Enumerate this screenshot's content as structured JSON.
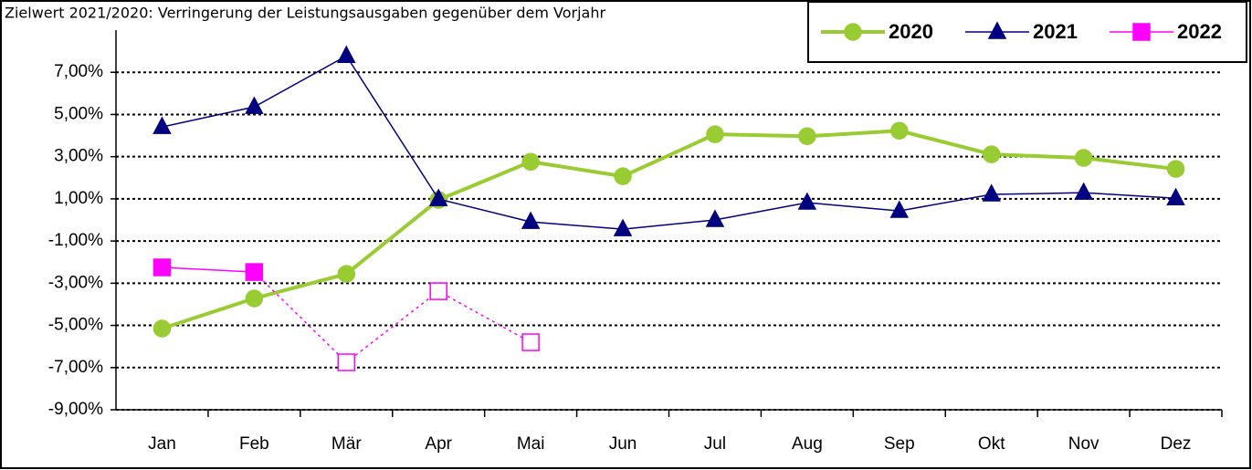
{
  "chart_data": {
    "type": "line",
    "title": "Zielwert 2021/2020: Verringerung der Leistungsausgaben gegenüber dem Vorjahr",
    "categories": [
      "Jan",
      "Feb",
      "Mär",
      "Apr",
      "Mai",
      "Jun",
      "Jul",
      "Aug",
      "Sep",
      "Okt",
      "Nov",
      "Dez"
    ],
    "series": [
      {
        "name": "2020",
        "color": "#99cc33",
        "marker": "circle",
        "line_width": 4,
        "values": [
          -5.15,
          -3.72,
          -2.56,
          0.95,
          2.76,
          2.07,
          4.06,
          3.97,
          4.23,
          3.11,
          2.94,
          2.42
        ]
      },
      {
        "name": "2021",
        "color": "#000080",
        "marker": "triangle",
        "line_width": 1.5,
        "values": [
          4.41,
          5.36,
          7.78,
          0.99,
          -0.09,
          -0.44,
          0.0,
          0.82,
          0.43,
          1.21,
          1.29,
          1.03
        ]
      },
      {
        "name": "2022",
        "color": "#ff00ff",
        "marker": "square",
        "line_width": 1.5,
        "values": [
          -2.25,
          -2.47,
          -6.75,
          -3.38,
          -5.8,
          null,
          null,
          null,
          null,
          null,
          null,
          null
        ],
        "styles": [
          "solid",
          "solid",
          "dotted",
          "dotted",
          "dotted",
          null,
          null,
          null,
          null,
          null,
          null,
          null
        ]
      }
    ],
    "ylim": [
      -9,
      9
    ],
    "yticks": [
      {
        "value": -9,
        "label": "-9,00%"
      },
      {
        "value": -7,
        "label": "-7,00%"
      },
      {
        "value": -5,
        "label": "-5,00%"
      },
      {
        "value": -3,
        "label": "-3,00%"
      },
      {
        "value": -1,
        "label": "-1,00%"
      },
      {
        "value": 1,
        "label": "1,00%"
      },
      {
        "value": 3,
        "label": "3,00%"
      },
      {
        "value": 5,
        "label": "5,00%"
      },
      {
        "value": 7,
        "label": "7,00%"
      }
    ],
    "grid": true,
    "legend": "top-right"
  }
}
